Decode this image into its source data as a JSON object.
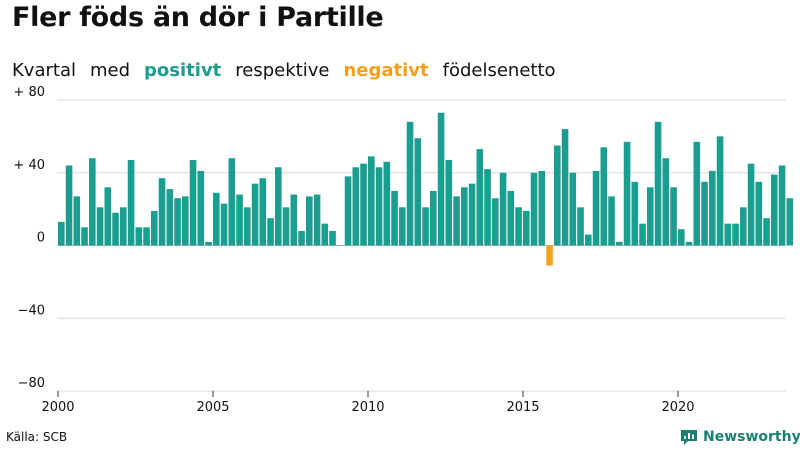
{
  "title": "Fler föds än dör i Partille",
  "subtitle": {
    "word1": "Kvartal",
    "word2": "med",
    "positive": "positivt",
    "word3": "respektive",
    "negative": "negativt",
    "word4": "födelsenetto"
  },
  "source": "Källa: SCB",
  "brand": "Newsworthy",
  "colors": {
    "positive": "#1a9e8f",
    "negative": "#f5a01c",
    "brand": "#1a7f73"
  },
  "chart_data": {
    "type": "bar",
    "title": "Fler föds än dör i Partille",
    "xlabel": "",
    "ylabel": "",
    "ylim": [
      -80,
      80
    ],
    "y_ticks": [
      80,
      40,
      0,
      -40,
      -80
    ],
    "y_tick_labels": [
      "+ 80",
      "+ 40",
      "0",
      "−40",
      "−80"
    ],
    "x_ticks": [
      "2000",
      "2005",
      "2010",
      "2015",
      "2020"
    ],
    "start_year": 2000,
    "periods_per_year": 4,
    "values": [
      13,
      44,
      27,
      10,
      48,
      21,
      32,
      18,
      21,
      47,
      10,
      10,
      19,
      37,
      31,
      26,
      27,
      47,
      41,
      2,
      29,
      23,
      48,
      28,
      21,
      34,
      37,
      15,
      43,
      21,
      28,
      8,
      27,
      28,
      12,
      8,
      0,
      38,
      43,
      45,
      49,
      43,
      46,
      30,
      21,
      68,
      59,
      21,
      30,
      73,
      47,
      27,
      32,
      34,
      53,
      42,
      26,
      40,
      30,
      21,
      19,
      40,
      41,
      -11,
      55,
      64,
      40,
      21,
      6,
      41,
      54,
      27,
      2,
      57,
      35,
      12,
      32,
      68,
      48,
      32,
      9,
      2,
      57,
      35,
      41,
      60,
      12,
      12,
      21,
      45,
      35,
      15,
      39,
      44,
      26
    ]
  }
}
